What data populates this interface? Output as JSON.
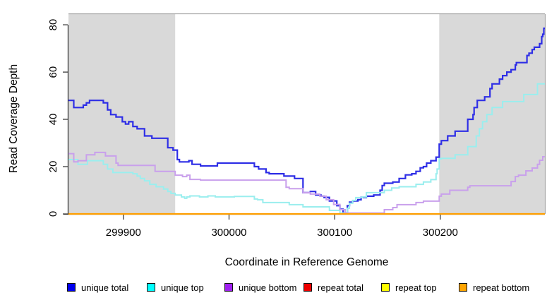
{
  "figure": {
    "x_axis_title": "Coordinate in Reference Genome",
    "y_axis_title": "Read Coverage Depth",
    "x_tick_labels": [
      "299900",
      "300000",
      "300100",
      "300200"
    ],
    "y_tick_labels": [
      "0",
      "20",
      "40",
      "60",
      "80"
    ]
  },
  "colors": {
    "background": "#ffffff",
    "shaded_region": "#d9d9d9",
    "plot_border": "#a8a8a8",
    "axis": "#3c3c3c",
    "text": "#000000"
  },
  "legend": {
    "entries": [
      {
        "label": "unique total",
        "swatch_color": "#0000ee"
      },
      {
        "label": "unique top",
        "swatch_color": "#00ffff"
      },
      {
        "label": "unique bottom",
        "swatch_color": "#a020f0"
      },
      {
        "label": "repeat total",
        "swatch_color": "#ee0000"
      },
      {
        "label": "repeat top",
        "swatch_color": "#ffff00"
      },
      {
        "label": "repeat bottom",
        "swatch_color": "#ffa500"
      }
    ]
  },
  "chart_data": {
    "type": "line",
    "step": true,
    "title": "",
    "xlabel": "Coordinate in Reference Genome",
    "ylabel": "Read Coverage Depth",
    "x_range": [
      299848,
      300299
    ],
    "y_range": [
      0,
      84.5
    ],
    "x_ticks": [
      299900,
      300000,
      300100,
      300200
    ],
    "y_ticks": [
      0,
      20,
      40,
      60,
      80
    ],
    "grid": false,
    "legend_position": "bottom",
    "shaded_regions": [
      {
        "x0": 299848,
        "x1": 299949,
        "color": "#d9d9d9",
        "meaning": "flanking repeat region (left)"
      },
      {
        "x0": 300199,
        "x1": 300299,
        "color": "#d9d9d9",
        "meaning": "flanking repeat region (right)"
      }
    ],
    "series": [
      {
        "name": "unique total",
        "line_color": "#2e2ee6",
        "legend_color": "#0000ee",
        "width": 2.2,
        "points": [
          [
            299848,
            48
          ],
          [
            299853,
            45
          ],
          [
            299862,
            46
          ],
          [
            299865,
            47
          ],
          [
            299868,
            48
          ],
          [
            299881,
            47
          ],
          [
            299885,
            44
          ],
          [
            299888,
            42
          ],
          [
            299893,
            41
          ],
          [
            299899,
            39
          ],
          [
            299902,
            38
          ],
          [
            299905,
            39
          ],
          [
            299909,
            37
          ],
          [
            299913,
            36
          ],
          [
            299920,
            33
          ],
          [
            299927,
            32
          ],
          [
            299942,
            28
          ],
          [
            299947,
            27
          ],
          [
            299951,
            23
          ],
          [
            299953,
            22
          ],
          [
            299962,
            22.5
          ],
          [
            299965,
            21
          ],
          [
            299973,
            20.3
          ],
          [
            299989,
            21.5
          ],
          [
            300024,
            20
          ],
          [
            300028,
            19
          ],
          [
            300035,
            17.5
          ],
          [
            300038,
            17
          ],
          [
            300052,
            16
          ],
          [
            300062,
            15
          ],
          [
            300070,
            9
          ],
          [
            300077,
            9.5
          ],
          [
            300082,
            8
          ],
          [
            300087,
            7.5
          ],
          [
            300090,
            7
          ],
          [
            300095,
            5.5
          ],
          [
            300102,
            3.5
          ],
          [
            300105,
            2
          ],
          [
            300108,
            0.4
          ],
          [
            300112,
            3.5
          ],
          [
            300114,
            5
          ],
          [
            300117,
            5.5
          ],
          [
            300122,
            6
          ],
          [
            300125,
            7
          ],
          [
            300130,
            7.5
          ],
          [
            300137,
            8
          ],
          [
            300143,
            10
          ],
          [
            300145,
            12
          ],
          [
            300147,
            13
          ],
          [
            300155,
            13.5
          ],
          [
            300161,
            15
          ],
          [
            300167,
            16.5
          ],
          [
            300173,
            17
          ],
          [
            300177,
            18
          ],
          [
            300181,
            19.5
          ],
          [
            300184,
            20
          ],
          [
            300187,
            21.5
          ],
          [
            300191,
            22.5
          ],
          [
            300196,
            24
          ],
          [
            300199,
            29.5
          ],
          [
            300201,
            31
          ],
          [
            300207,
            33
          ],
          [
            300214,
            35
          ],
          [
            300226,
            40
          ],
          [
            300231,
            42
          ],
          [
            300232,
            45
          ],
          [
            300235,
            48
          ],
          [
            300242,
            49.5
          ],
          [
            300247,
            53
          ],
          [
            300249,
            55
          ],
          [
            300256,
            57
          ],
          [
            300259,
            58.5
          ],
          [
            300263,
            60
          ],
          [
            300267,
            61
          ],
          [
            300271,
            63
          ],
          [
            300272,
            64
          ],
          [
            300282,
            67
          ],
          [
            300284,
            68
          ],
          [
            300287,
            69.5
          ],
          [
            300289,
            70.5
          ],
          [
            300294,
            72
          ],
          [
            300296,
            75
          ],
          [
            300297,
            76
          ],
          [
            300298,
            78.5
          ]
        ]
      },
      {
        "name": "unique top",
        "line_color": "#9aeeee",
        "legend_color": "#00ffff",
        "width": 2,
        "points": [
          [
            299848,
            23
          ],
          [
            299857,
            21
          ],
          [
            299866,
            22.5
          ],
          [
            299881,
            21
          ],
          [
            299885,
            19
          ],
          [
            299890,
            17.5
          ],
          [
            299909,
            17
          ],
          [
            299913,
            16
          ],
          [
            299916,
            15
          ],
          [
            299920,
            14
          ],
          [
            299925,
            12.5
          ],
          [
            299931,
            11.5
          ],
          [
            299938,
            10.5
          ],
          [
            299942,
            9.5
          ],
          [
            299945,
            8.7
          ],
          [
            299949,
            8
          ],
          [
            299955,
            7.2
          ],
          [
            299958,
            6.6
          ],
          [
            299960,
            7.2
          ],
          [
            299963,
            7.6
          ],
          [
            299972,
            7.2
          ],
          [
            299980,
            7.6
          ],
          [
            299987,
            7.2
          ],
          [
            300005,
            7.4
          ],
          [
            300024,
            6.3
          ],
          [
            300027,
            6
          ],
          [
            300032,
            4.8
          ],
          [
            300057,
            3.9
          ],
          [
            300070,
            3
          ],
          [
            300095,
            1.5
          ],
          [
            300105,
            0.4
          ],
          [
            300112,
            2.4
          ],
          [
            300114,
            4.5
          ],
          [
            300117,
            5.7
          ],
          [
            300120,
            6.9
          ],
          [
            300126,
            7.2
          ],
          [
            300130,
            9
          ],
          [
            300147,
            10
          ],
          [
            300154,
            11
          ],
          [
            300161,
            11.5
          ],
          [
            300177,
            12.5
          ],
          [
            300184,
            13.5
          ],
          [
            300191,
            14.5
          ],
          [
            300196,
            17
          ],
          [
            300197,
            19
          ],
          [
            300199,
            23.3
          ],
          [
            300201,
            23.5
          ],
          [
            300214,
            25
          ],
          [
            300226,
            28.5
          ],
          [
            300234,
            33
          ],
          [
            300237,
            36
          ],
          [
            300240,
            39
          ],
          [
            300244,
            42
          ],
          [
            300249,
            45
          ],
          [
            300259,
            47.5
          ],
          [
            300279,
            50.5
          ],
          [
            300292,
            55
          ]
        ]
      },
      {
        "name": "unique bottom",
        "line_color": "#c9a0ec",
        "legend_color": "#a020f0",
        "width": 2,
        "points": [
          [
            299848,
            25.5
          ],
          [
            299853,
            22
          ],
          [
            299857,
            22.5
          ],
          [
            299865,
            25
          ],
          [
            299873,
            26
          ],
          [
            299883,
            24.5
          ],
          [
            299893,
            21.5
          ],
          [
            299895,
            20.5
          ],
          [
            299930,
            18
          ],
          [
            299949,
            16.4
          ],
          [
            299956,
            15.8
          ],
          [
            299960,
            16.4
          ],
          [
            299963,
            14.6
          ],
          [
            299973,
            14.3
          ],
          [
            300054,
            11.3
          ],
          [
            300057,
            10.7
          ],
          [
            300070,
            9
          ],
          [
            300077,
            8.4
          ],
          [
            300086,
            7.5
          ],
          [
            300092,
            6
          ],
          [
            300099,
            4
          ],
          [
            300105,
            1.8
          ],
          [
            300110,
            0.4
          ],
          [
            300147,
            1.8
          ],
          [
            300155,
            2.7
          ],
          [
            300159,
            3.9
          ],
          [
            300177,
            4.8
          ],
          [
            300184,
            5.4
          ],
          [
            300199,
            7.5
          ],
          [
            300201,
            8.4
          ],
          [
            300209,
            10
          ],
          [
            300226,
            11.3
          ],
          [
            300228,
            11.9
          ],
          [
            300267,
            13.7
          ],
          [
            300271,
            15.8
          ],
          [
            300274,
            16.4
          ],
          [
            300281,
            18.2
          ],
          [
            300287,
            19.4
          ],
          [
            300292,
            21
          ],
          [
            300294,
            22.7
          ],
          [
            300297,
            24.2
          ]
        ]
      },
      {
        "name": "repeat total",
        "line_color": "#e00000",
        "legend_color": "#ee0000",
        "width": 1.6,
        "points": [
          [
            299848,
            0
          ]
        ]
      },
      {
        "name": "repeat top",
        "line_color": "#ffff00",
        "legend_color": "#ffff00",
        "width": 1.8,
        "points": [
          [
            299848,
            0
          ]
        ]
      },
      {
        "name": "repeat bottom",
        "line_color": "#ff9f00",
        "legend_color": "#ffa500",
        "width": 2.2,
        "points": [
          [
            299848,
            0
          ]
        ]
      }
    ]
  }
}
